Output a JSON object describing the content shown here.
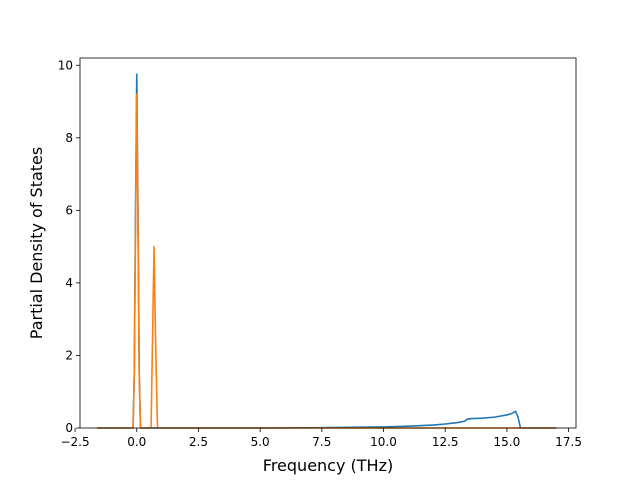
{
  "chart_data": {
    "type": "line",
    "title": "",
    "xlabel": "Frequency (THz)",
    "ylabel": "Partial Density of States",
    "xlim": [
      -2.3,
      17.8
    ],
    "ylim": [
      0,
      10.2
    ],
    "xticks": [
      -2.5,
      0.0,
      2.5,
      5.0,
      7.5,
      10.0,
      12.5,
      15.0,
      17.5
    ],
    "xtick_labels": [
      "−2.5",
      "0.0",
      "2.5",
      "5.0",
      "7.5",
      "10.0",
      "12.5",
      "15.0",
      "17.5"
    ],
    "yticks": [
      0,
      2,
      4,
      6,
      8,
      10
    ],
    "ytick_labels": [
      "0",
      "2",
      "4",
      "6",
      "8",
      "10"
    ],
    "grid": false,
    "legend": "none",
    "series": [
      {
        "color": "#1f77b4",
        "x": [
          -1.6,
          -0.15,
          -0.1,
          -0.05,
          0.0,
          0.05,
          0.1,
          0.15,
          2.0,
          5.0,
          7.5,
          10.0,
          11.0,
          12.0,
          12.5,
          13.0,
          13.3,
          13.4,
          13.6,
          14.0,
          14.5,
          15.0,
          15.2,
          15.35,
          15.45,
          15.55,
          17.0
        ],
        "y": [
          0.0,
          0.0,
          1.5,
          6.0,
          9.75,
          6.0,
          1.5,
          0.0,
          0.0,
          0.0,
          0.01,
          0.03,
          0.05,
          0.08,
          0.11,
          0.15,
          0.19,
          0.25,
          0.26,
          0.27,
          0.3,
          0.36,
          0.4,
          0.46,
          0.3,
          0.0,
          0.0
        ]
      },
      {
        "color": "#ff7f0e",
        "x": [
          -1.6,
          -0.15,
          -0.1,
          -0.05,
          0.0,
          0.05,
          0.1,
          0.15,
          0.5,
          0.58,
          0.64,
          0.7,
          0.76,
          0.84,
          2.0,
          17.0
        ],
        "y": [
          0.0,
          0.0,
          1.5,
          5.5,
          9.2,
          5.5,
          1.5,
          0.0,
          0.0,
          0.0,
          2.5,
          5.0,
          2.5,
          0.0,
          0.0,
          0.0
        ]
      }
    ]
  }
}
